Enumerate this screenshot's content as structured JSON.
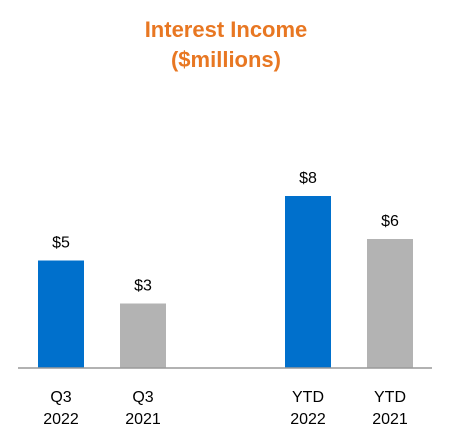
{
  "chart_data": {
    "type": "bar",
    "title": "Interest Income",
    "subtitle": "($millions)",
    "categories": [
      {
        "line1": "Q3",
        "line2": "2022"
      },
      {
        "line1": "Q3",
        "line2": "2021"
      },
      {
        "line1": "YTD",
        "line2": "2022"
      },
      {
        "line1": "YTD",
        "line2": "2021"
      }
    ],
    "values": [
      5,
      3,
      8,
      6
    ],
    "value_labels": [
      "$5",
      "$3",
      "$8",
      "$6"
    ],
    "bar_colors": [
      "#0070cc",
      "#b3b3b3",
      "#0070cc",
      "#b3b3b3"
    ],
    "ylim": [
      0,
      9
    ],
    "xlabel": "",
    "ylabel": "",
    "grid": false,
    "legend": "none"
  },
  "colors": {
    "title": "#e87722",
    "axis": "#999999",
    "text": "#000000"
  }
}
